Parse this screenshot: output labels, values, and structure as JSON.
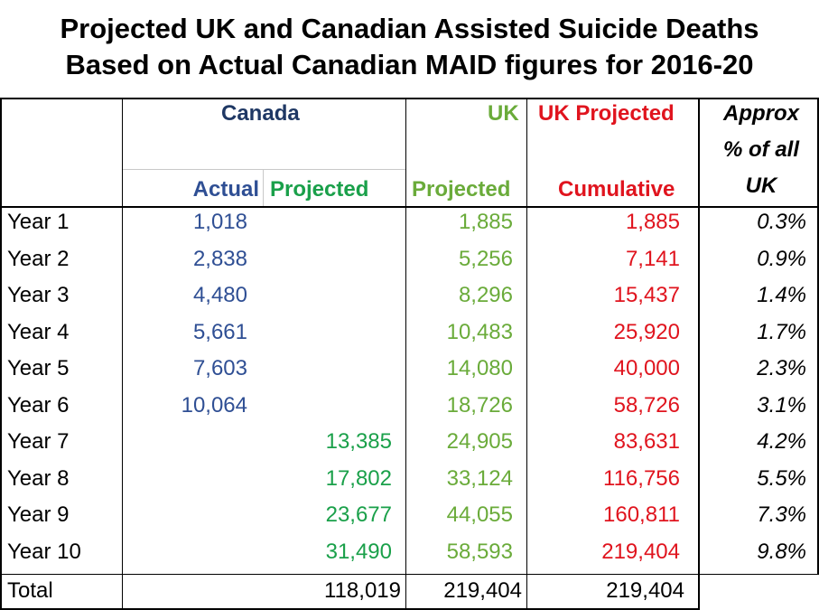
{
  "title": {
    "line1": "Projected UK and Canadian Assisted Suicide Deaths",
    "line2": "Based on Actual Canadian MAID figures for 2016-20"
  },
  "headers": {
    "canada": "Canada",
    "uk": "UK",
    "uk_projected": "UK Projected",
    "approx_line1": "Approx",
    "approx_line2": "% of all",
    "approx_line3": "UK",
    "actual": "Actual",
    "projected": "Projected",
    "uk_projected_sub": "Projected",
    "cumulative": "Cumulative"
  },
  "colors": {
    "blue": "#2f4f94",
    "green": "#1aa04a",
    "light_green": "#6aab3a",
    "red": "#e0141e"
  },
  "rows": [
    {
      "label": "Year 1",
      "actual": "1,018",
      "projected": "",
      "uk": "1,885",
      "cumulative": "1,885",
      "pct": "0.3%"
    },
    {
      "label": "Year 2",
      "actual": "2,838",
      "projected": "",
      "uk": "5,256",
      "cumulative": "7,141",
      "pct": "0.9%"
    },
    {
      "label": "Year 3",
      "actual": "4,480",
      "projected": "",
      "uk": "8,296",
      "cumulative": "15,437",
      "pct": "1.4%"
    },
    {
      "label": "Year 4",
      "actual": "5,661",
      "projected": "",
      "uk": "10,483",
      "cumulative": "25,920",
      "pct": "1.7%"
    },
    {
      "label": "Year 5",
      "actual": "7,603",
      "projected": "",
      "uk": "14,080",
      "cumulative": "40,000",
      "pct": "2.3%"
    },
    {
      "label": "Year 6",
      "actual": "10,064",
      "projected": "",
      "uk": "18,726",
      "cumulative": "58,726",
      "pct": "3.1%"
    },
    {
      "label": "Year 7",
      "actual": "",
      "projected": "13,385",
      "uk": "24,905",
      "cumulative": "83,631",
      "pct": "4.2%"
    },
    {
      "label": "Year 8",
      "actual": "",
      "projected": "17,802",
      "uk": "33,124",
      "cumulative": "116,756",
      "pct": "5.5%"
    },
    {
      "label": "Year 9",
      "actual": "",
      "projected": "23,677",
      "uk": "44,055",
      "cumulative": "160,811",
      "pct": "7.3%"
    },
    {
      "label": "Year 10",
      "actual": "",
      "projected": "31,490",
      "uk": "58,593",
      "cumulative": "219,404",
      "pct": "9.8%"
    }
  ],
  "total": {
    "label": "Total",
    "projected": "118,019",
    "uk": "219,404",
    "cumulative": "219,404"
  }
}
